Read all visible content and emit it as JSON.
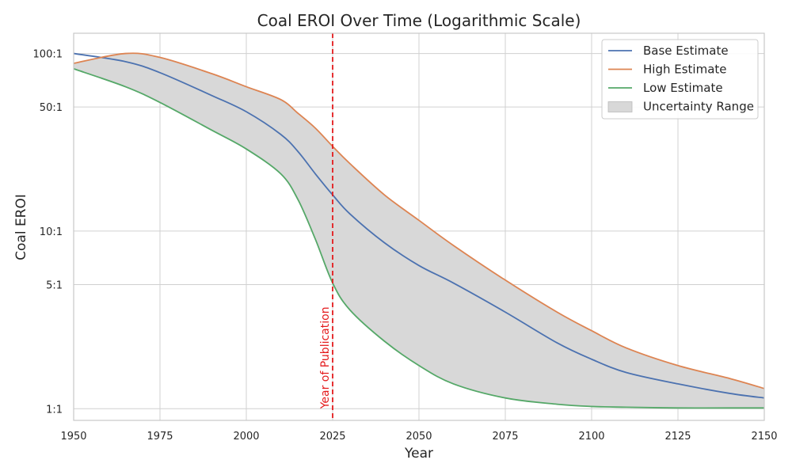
{
  "chart_data": {
    "type": "line",
    "title": "Coal EROI Over Time (Logarithmic Scale)",
    "xlabel": "Year",
    "ylabel": "Coal EROI",
    "xlim": [
      1950,
      2150
    ],
    "ylim": [
      0.86,
      130
    ],
    "y_scale": "log",
    "grid": true,
    "legend_position": "top-right",
    "x_ticks": [
      1950,
      1975,
      2000,
      2025,
      2050,
      2075,
      2100,
      2125,
      2150
    ],
    "y_ticks": [
      {
        "value": 1,
        "label": "1:1"
      },
      {
        "value": 5,
        "label": "5:1"
      },
      {
        "value": 10,
        "label": "10:1"
      },
      {
        "value": 50,
        "label": "50:1"
      },
      {
        "value": 100,
        "label": "100:1"
      }
    ],
    "x": [
      1950,
      1965,
      1975,
      1990,
      2000,
      2010,
      2015,
      2020,
      2025,
      2030,
      2040,
      2050,
      2060,
      2075,
      2090,
      2100,
      2110,
      2125,
      2140,
      2150
    ],
    "series": [
      {
        "name": "Base Estimate",
        "color": "#4c72b0",
        "values": [
          100,
          90,
          78,
          58,
          47,
          35,
          28,
          21,
          16,
          12.5,
          8.6,
          6.4,
          5.1,
          3.5,
          2.35,
          1.9,
          1.6,
          1.38,
          1.22,
          1.15
        ]
      },
      {
        "name": "High Estimate",
        "color": "#dd8452",
        "values": [
          88,
          100,
          95,
          77,
          65,
          55,
          46,
          38,
          30,
          24,
          16,
          11.5,
          8.3,
          5.3,
          3.5,
          2.75,
          2.2,
          1.75,
          1.48,
          1.3
        ]
      },
      {
        "name": "Low Estimate",
        "color": "#55a868",
        "values": [
          82,
          65,
          53,
          37,
          29,
          21,
          15,
          9,
          5.1,
          3.6,
          2.4,
          1.75,
          1.38,
          1.15,
          1.06,
          1.03,
          1.02,
          1.01,
          1.01,
          1.01
        ]
      }
    ],
    "uncertainty_label": "Uncertainty Range",
    "uncertainty_color": "#d8d8d8",
    "annotation": {
      "x": 2025,
      "label": "Year of Publication",
      "color": "#e41a1c"
    }
  }
}
